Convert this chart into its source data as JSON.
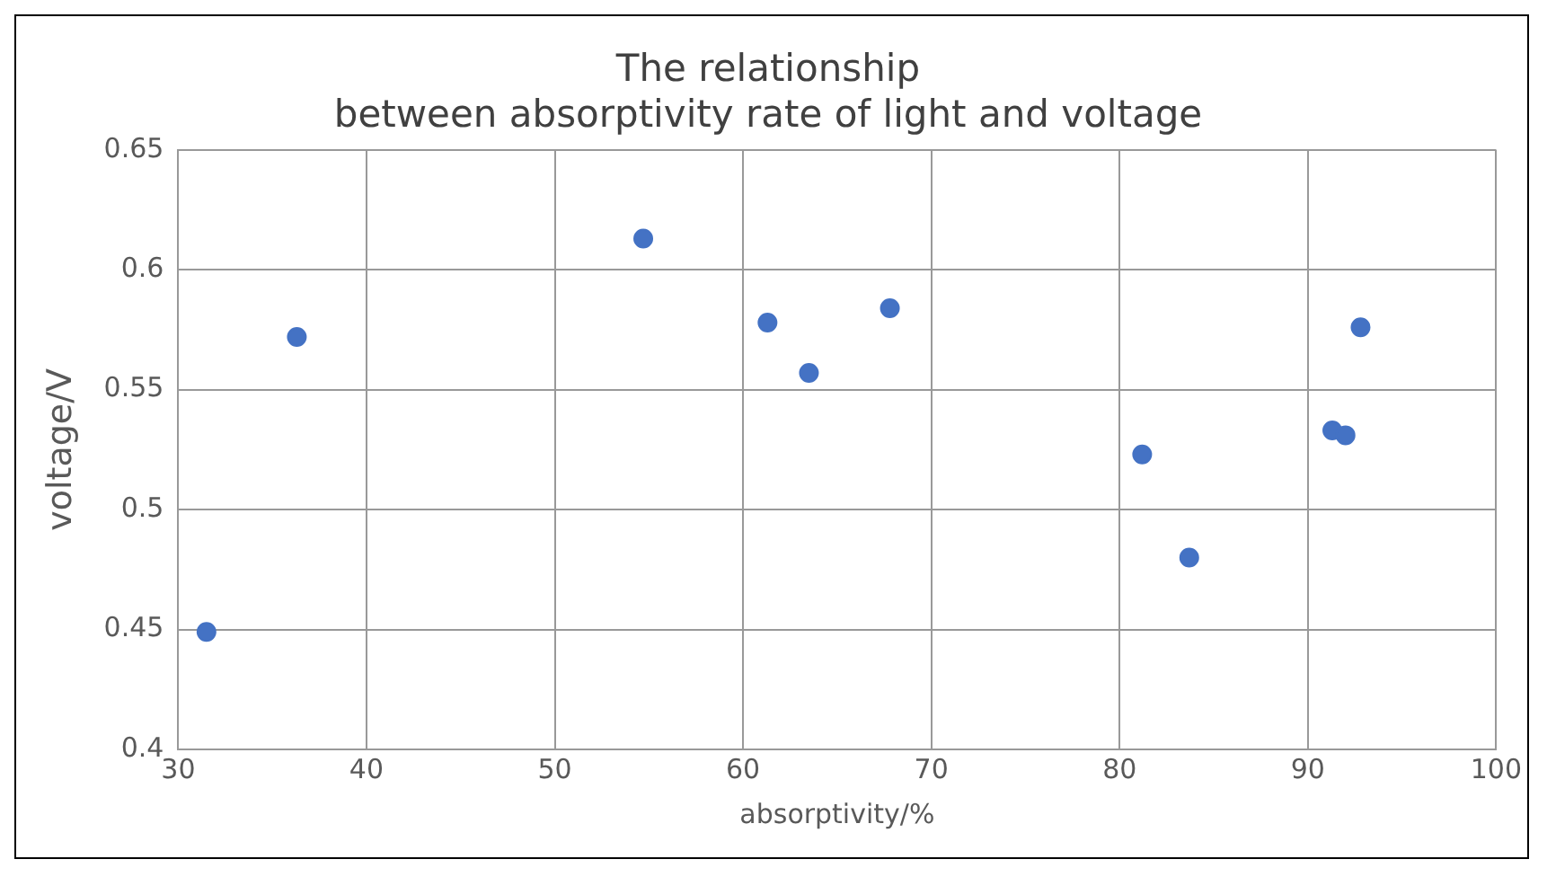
{
  "chart_data": {
    "type": "scatter",
    "title": "The relationship\nbetween absorptivity rate of light and voltage",
    "xlabel": "absorptivity/%",
    "ylabel": "voltage/V",
    "x": [
      31.5,
      36.3,
      54.7,
      61.3,
      63.5,
      67.8,
      81.2,
      83.7,
      91.3,
      92.0,
      92.8
    ],
    "series": [
      {
        "color": "#4472c4",
        "values": [
          0.449,
          0.572,
          0.613,
          0.578,
          0.557,
          0.584,
          0.523,
          0.48,
          0.533,
          0.531,
          0.576
        ]
      }
    ],
    "xlim": [
      30,
      100
    ],
    "xticks": [
      30,
      40,
      50,
      60,
      70,
      80,
      90,
      100
    ],
    "ylim": [
      0.4,
      0.65
    ],
    "yticks": [
      0.4,
      0.45,
      0.5,
      0.55,
      0.6,
      0.65
    ],
    "grid": true,
    "marker": "circle"
  }
}
